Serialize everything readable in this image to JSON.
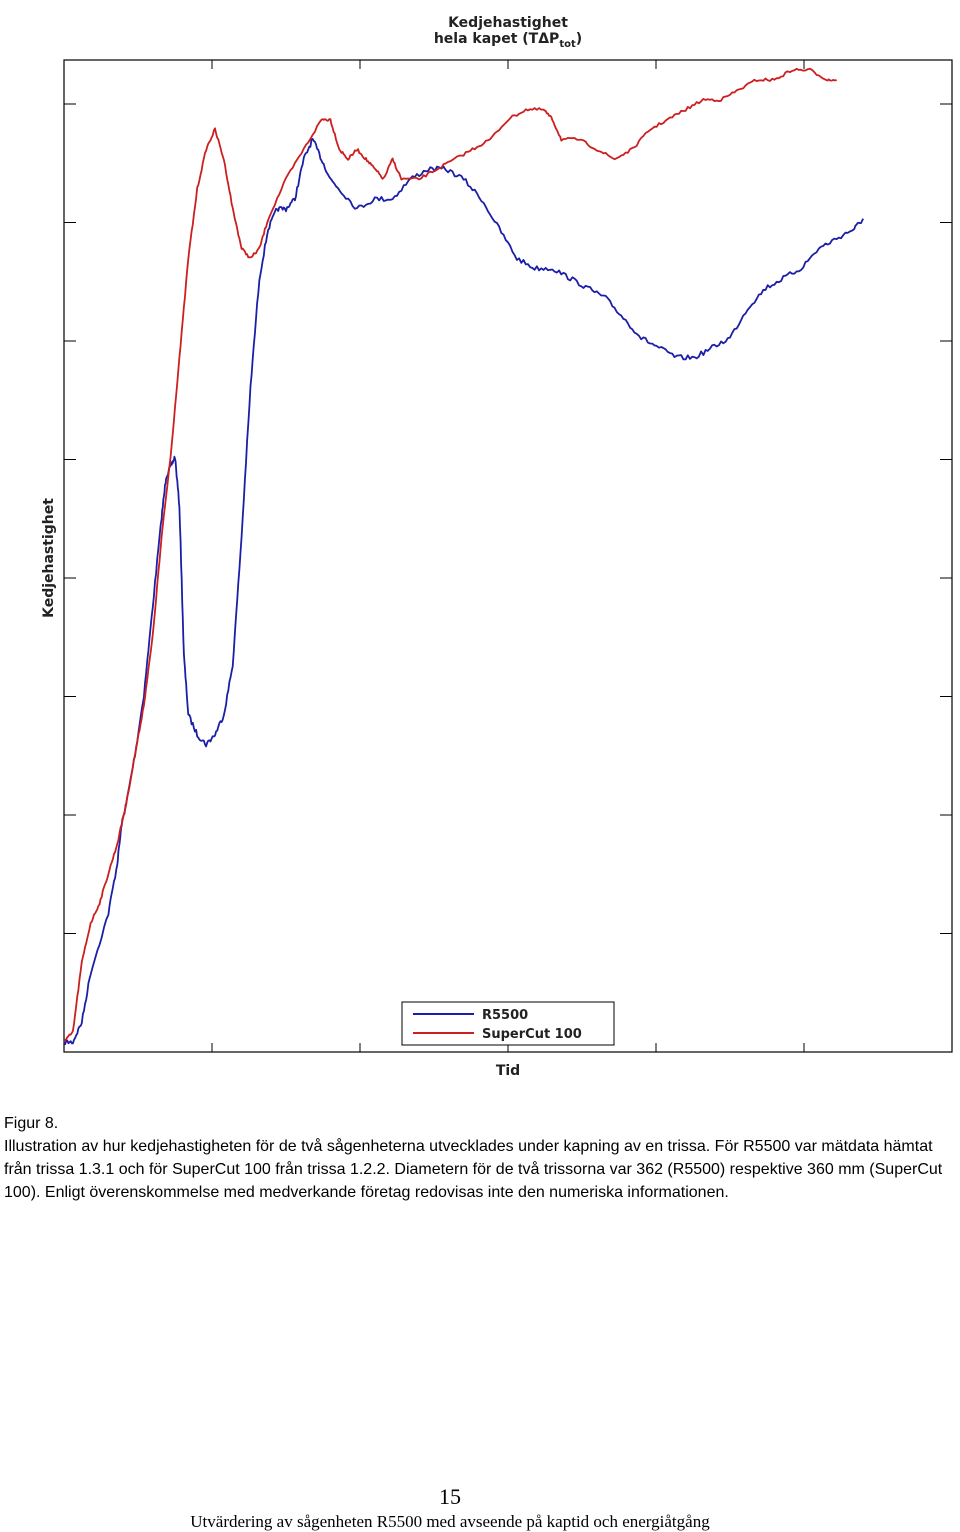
{
  "chart_data": {
    "type": "line",
    "title": "Kedjehastighet",
    "subtitle_main": "hela kapet (TΔP",
    "subtitle_sub": "tot",
    "subtitle_end": ")",
    "xlabel": "Tid",
    "ylabel": "Kedjehastighet",
    "xlim": [
      0,
      100
    ],
    "ylim": [
      0,
      100
    ],
    "grid": false,
    "tick_labels": false,
    "legend_position": "bottom-right",
    "series": [
      {
        "name": "R5500",
        "color": "#1b1fa8",
        "points": [
          [
            0,
            1
          ],
          [
            1,
            1
          ],
          [
            2,
            3
          ],
          [
            3,
            8
          ],
          [
            5,
            14
          ],
          [
            6,
            19
          ],
          [
            6.5,
            23
          ],
          [
            7,
            25
          ],
          [
            8,
            30
          ],
          [
            9,
            36
          ],
          [
            10,
            45
          ],
          [
            11,
            54
          ],
          [
            11.5,
            58
          ],
          [
            12,
            59
          ],
          [
            12.5,
            60
          ],
          [
            13,
            55
          ],
          [
            13.5,
            40
          ],
          [
            14,
            34
          ],
          [
            15,
            32
          ],
          [
            16,
            31
          ],
          [
            17,
            32
          ],
          [
            18,
            34
          ],
          [
            19,
            39
          ],
          [
            20,
            52
          ],
          [
            21,
            67
          ],
          [
            22,
            78
          ],
          [
            23,
            83
          ],
          [
            24,
            85
          ],
          [
            25,
            85
          ],
          [
            26,
            86
          ],
          [
            27,
            90
          ],
          [
            28,
            92
          ],
          [
            29,
            90
          ],
          [
            30,
            88
          ],
          [
            31,
            87
          ],
          [
            33,
            85
          ],
          [
            35,
            86
          ],
          [
            37,
            86
          ],
          [
            39,
            88
          ],
          [
            41,
            89
          ],
          [
            43,
            89
          ],
          [
            45,
            88
          ],
          [
            47,
            86
          ],
          [
            49,
            83
          ],
          [
            51,
            80
          ],
          [
            53,
            79
          ],
          [
            55,
            79
          ],
          [
            57,
            78
          ],
          [
            59,
            77
          ],
          [
            61,
            76
          ],
          [
            63,
            74
          ],
          [
            65,
            72
          ],
          [
            67,
            71
          ],
          [
            69,
            70
          ],
          [
            71,
            70
          ],
          [
            73,
            71
          ],
          [
            75,
            72
          ],
          [
            77,
            75
          ],
          [
            79,
            77
          ],
          [
            81,
            78
          ],
          [
            83,
            79
          ],
          [
            85,
            81
          ],
          [
            87,
            82
          ],
          [
            89,
            83
          ],
          [
            90,
            84
          ]
        ]
      },
      {
        "name": "SuperCut 100",
        "color": "#cc1f1f",
        "points": [
          [
            0,
            1
          ],
          [
            1,
            2
          ],
          [
            2,
            9
          ],
          [
            3,
            13
          ],
          [
            4,
            15
          ],
          [
            5,
            18
          ],
          [
            6,
            21
          ],
          [
            7,
            25
          ],
          [
            8,
            30
          ],
          [
            9,
            35
          ],
          [
            10,
            42
          ],
          [
            11,
            52
          ],
          [
            12,
            60
          ],
          [
            13,
            70
          ],
          [
            14,
            80
          ],
          [
            15,
            87
          ],
          [
            16,
            91
          ],
          [
            17,
            93
          ],
          [
            18,
            90
          ],
          [
            19,
            85
          ],
          [
            20,
            81
          ],
          [
            21,
            80
          ],
          [
            22,
            81
          ],
          [
            23,
            84
          ],
          [
            25,
            88
          ],
          [
            27,
            91
          ],
          [
            29,
            94
          ],
          [
            30,
            94
          ],
          [
            31,
            91
          ],
          [
            32,
            90
          ],
          [
            33,
            91
          ],
          [
            34,
            90
          ],
          [
            35,
            89
          ],
          [
            36,
            88
          ],
          [
            37,
            90
          ],
          [
            38,
            88
          ],
          [
            40,
            88
          ],
          [
            42,
            89
          ],
          [
            44,
            90
          ],
          [
            46,
            91
          ],
          [
            48,
            92
          ],
          [
            50,
            94
          ],
          [
            52,
            95
          ],
          [
            54,
            95
          ],
          [
            55,
            94
          ],
          [
            56,
            92
          ],
          [
            58,
            92
          ],
          [
            60,
            91
          ],
          [
            62,
            90
          ],
          [
            64,
            91
          ],
          [
            66,
            93
          ],
          [
            68,
            94
          ],
          [
            70,
            95
          ],
          [
            72,
            96
          ],
          [
            74,
            96
          ],
          [
            76,
            97
          ],
          [
            78,
            98
          ],
          [
            80,
            98
          ],
          [
            82,
            99
          ],
          [
            84,
            99
          ],
          [
            86,
            98
          ],
          [
            87,
            98
          ]
        ]
      }
    ]
  },
  "caption": {
    "line1": "Figur 8.",
    "line2": "Illustration av hur kedjehastigheten för de två sågenheterna utvecklades under kapning av en trissa. För R5500 var mätdata hämtat från trissa 1.3.1 och för SuperCut 100 från trissa 1.2.2. Diametern för de två trissorna var 362 (R5500) respektive 360 mm (SuperCut 100). Enligt överenskommelse med medverkande företag redovisas inte den numeriska informationen."
  },
  "page_number": "15",
  "footer": "Utvärdering av sågenheten R5500 med avseende på kaptid och energiåtgång"
}
